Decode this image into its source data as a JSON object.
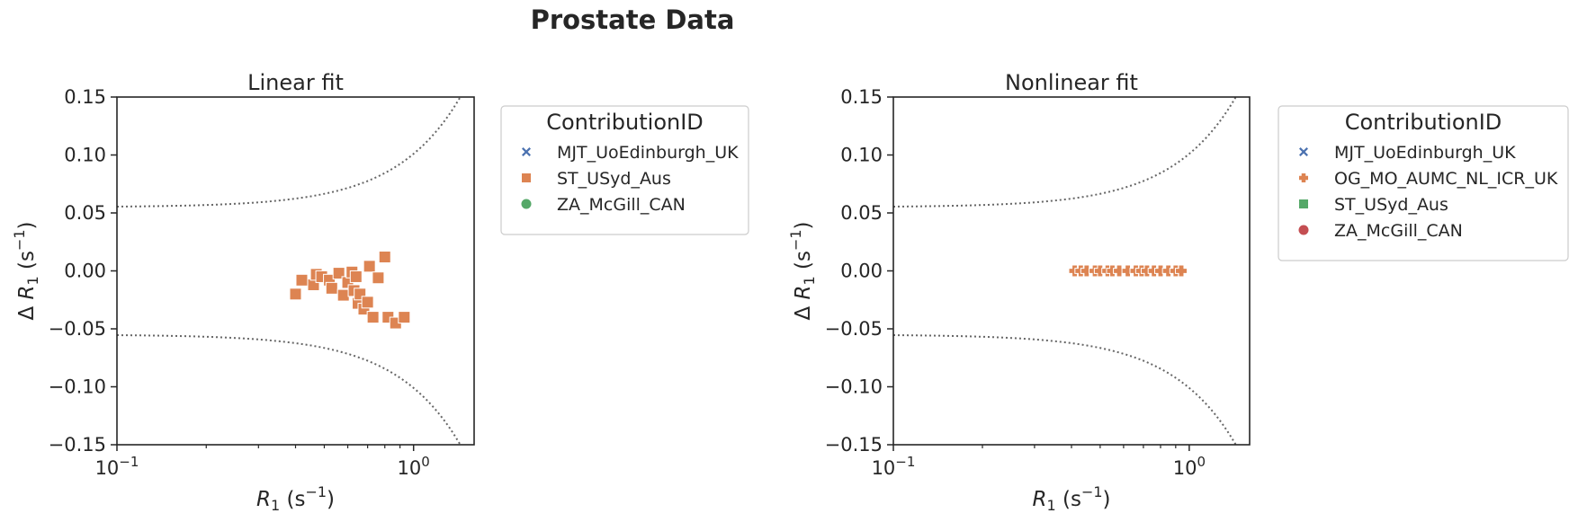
{
  "figure": {
    "title": "Prostate Data"
  },
  "chart_data": [
    {
      "type": "scatter",
      "title": "Linear fit",
      "x_scale": "log",
      "xlim": [
        0.1,
        1.6
      ],
      "ylim": [
        -0.15,
        0.15
      ],
      "xlabel": "R1 (s−1)",
      "ylabel": "Δ R1 (s−1)",
      "x_ticks": [
        {
          "value": 0.1,
          "base": "10",
          "exp": "−1"
        },
        {
          "value": 1.0,
          "base": "10",
          "exp": "0"
        }
      ],
      "y_ticks": [
        "0.15",
        "0.10",
        "0.05",
        "0.00",
        "−0.05",
        "−0.10",
        "−0.15"
      ],
      "y_tick_values": [
        0.15,
        0.1,
        0.05,
        0.0,
        -0.05,
        -0.1,
        -0.15
      ],
      "legend": {
        "title": "ContributionID",
        "placement": "outside-right",
        "entries": [
          {
            "label": "MJT_UoEdinburgh_UK",
            "marker": "x",
            "color": "#4c72b0"
          },
          {
            "label": "ST_USyd_Aus",
            "marker": "square",
            "color": "#dd8452"
          },
          {
            "label": "ZA_McGill_CAN",
            "marker": "circle",
            "color": "#55a868"
          }
        ]
      },
      "bounds_curve": {
        "style": "dotted",
        "color": "#666666",
        "center": 0.055,
        "slope": 0.046
      },
      "series": [
        {
          "marker": "square",
          "color": "#dd8452",
          "points": [
            [
              0.4,
              -0.02
            ],
            [
              0.42,
              -0.008
            ],
            [
              0.46,
              -0.012
            ],
            [
              0.47,
              -0.003
            ],
            [
              0.49,
              -0.005
            ],
            [
              0.52,
              -0.008
            ],
            [
              0.53,
              -0.015
            ],
            [
              0.56,
              -0.002
            ],
            [
              0.58,
              -0.021
            ],
            [
              0.6,
              -0.01
            ],
            [
              0.62,
              -0.001
            ],
            [
              0.63,
              -0.017
            ],
            [
              0.64,
              -0.005
            ],
            [
              0.65,
              -0.028
            ],
            [
              0.66,
              -0.02
            ],
            [
              0.68,
              -0.033
            ],
            [
              0.7,
              -0.027
            ],
            [
              0.71,
              0.004
            ],
            [
              0.73,
              -0.04
            ],
            [
              0.76,
              -0.006
            ],
            [
              0.8,
              0.012
            ],
            [
              0.82,
              -0.04
            ],
            [
              0.87,
              -0.045
            ],
            [
              0.93,
              -0.04
            ]
          ]
        }
      ]
    },
    {
      "type": "scatter",
      "title": "Nonlinear fit",
      "x_scale": "log",
      "xlim": [
        0.1,
        1.6
      ],
      "ylim": [
        -0.15,
        0.15
      ],
      "xlabel": "R1 (s−1)",
      "ylabel": "Δ R1 (s−1)",
      "x_ticks": [
        {
          "value": 0.1,
          "base": "10",
          "exp": "−1"
        },
        {
          "value": 1.0,
          "base": "10",
          "exp": "0"
        }
      ],
      "y_ticks": [
        "0.15",
        "0.10",
        "0.05",
        "0.00",
        "−0.05",
        "−0.10",
        "−0.15"
      ],
      "y_tick_values": [
        0.15,
        0.1,
        0.05,
        0.0,
        -0.05,
        -0.1,
        -0.15
      ],
      "legend": {
        "title": "ContributionID",
        "placement": "outside-right",
        "entries": [
          {
            "label": "MJT_UoEdinburgh_UK",
            "marker": "x",
            "color": "#4c72b0"
          },
          {
            "label": "OG_MO_AUMC_NL_ICR_UK",
            "marker": "plus",
            "color": "#dd8452"
          },
          {
            "label": "ST_USyd_Aus",
            "marker": "square",
            "color": "#55a868"
          },
          {
            "label": "ZA_McGill_CAN",
            "marker": "circle",
            "color": "#c44e52"
          }
        ]
      },
      "bounds_curve": {
        "style": "dotted",
        "color": "#666666",
        "center": 0.055,
        "slope": 0.046
      },
      "series": [
        {
          "marker": "plus",
          "color": "#dd8452",
          "points": [
            [
              0.41,
              0.0
            ],
            [
              0.43,
              0.0
            ],
            [
              0.45,
              0.0
            ],
            [
              0.48,
              0.0
            ],
            [
              0.5,
              0.0
            ],
            [
              0.53,
              0.0
            ],
            [
              0.55,
              0.0
            ],
            [
              0.58,
              0.0
            ],
            [
              0.62,
              0.0
            ],
            [
              0.66,
              0.0
            ],
            [
              0.69,
              0.0
            ],
            [
              0.72,
              0.0
            ],
            [
              0.76,
              0.0
            ],
            [
              0.8,
              0.0
            ],
            [
              0.85,
              0.0
            ],
            [
              0.9,
              0.0
            ],
            [
              0.94,
              0.0
            ]
          ]
        }
      ]
    }
  ]
}
